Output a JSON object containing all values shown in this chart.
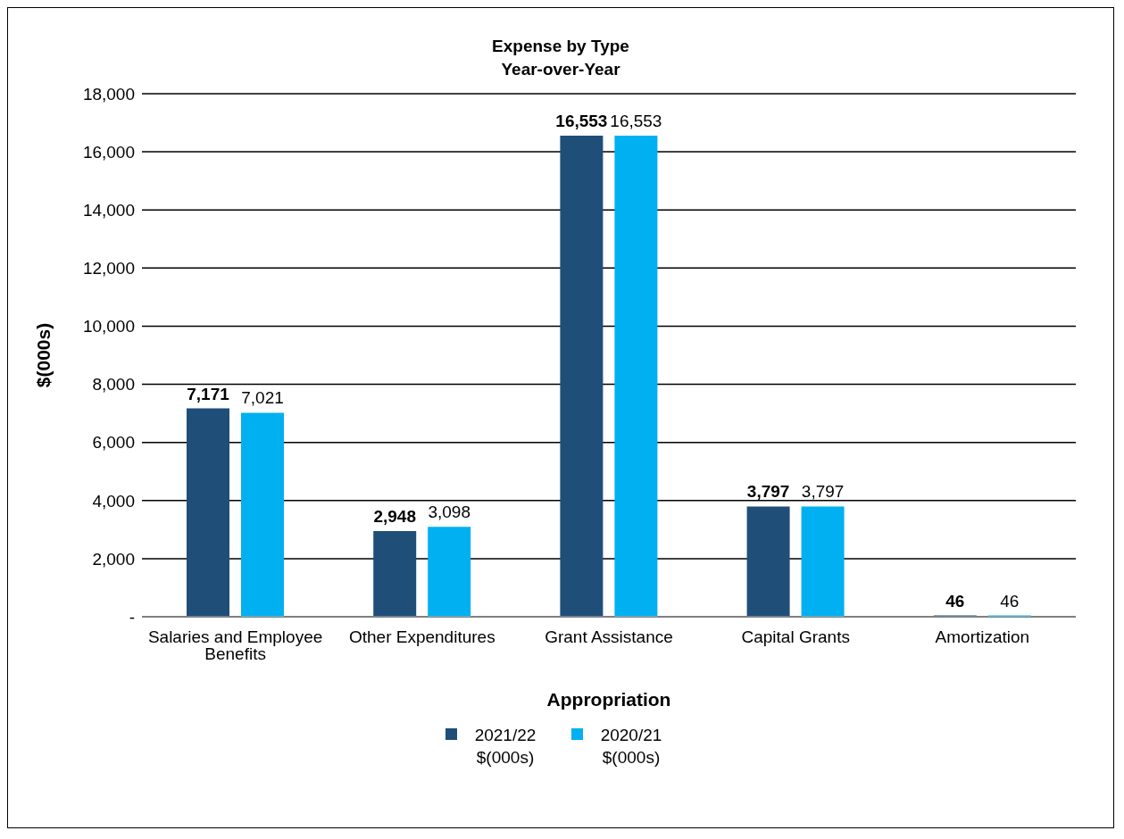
{
  "chart_data": {
    "type": "bar",
    "title": "Expense by Type",
    "subtitle": "Year-over-Year",
    "xlabel": "Appropriation",
    "ylabel": "$(000s)",
    "categories": [
      "Salaries and Employee Benefits",
      "Other Expenditures",
      "Grant Assistance",
      "Capital Grants",
      "Amortization"
    ],
    "series": [
      {
        "name": "2021/22 $(000s)",
        "color": "#1f4e79",
        "values": [
          7171,
          2948,
          16553,
          3797,
          46
        ],
        "value_labels": [
          "7,171",
          "2,948",
          "16,553",
          "3,797",
          "46"
        ]
      },
      {
        "name": "2020/21 $(000s)",
        "color": "#00b0f0",
        "values": [
          7021,
          3098,
          16553,
          3797,
          46
        ],
        "value_labels": [
          "7,021",
          "3,098",
          "16,553",
          "3,797",
          "46"
        ]
      }
    ],
    "ylim": [
      0,
      18000
    ],
    "yticks": [
      {
        "value": 0,
        "label": "-"
      },
      {
        "value": 2000,
        "label": "2,000"
      },
      {
        "value": 4000,
        "label": "4,000"
      },
      {
        "value": 6000,
        "label": "6,000"
      },
      {
        "value": 8000,
        "label": "8,000"
      },
      {
        "value": 10000,
        "label": "10,000"
      },
      {
        "value": 12000,
        "label": "12,000"
      },
      {
        "value": 14000,
        "label": "14,000"
      },
      {
        "value": 16000,
        "label": "16,000"
      },
      {
        "value": 18000,
        "label": "18,000"
      }
    ],
    "grid": "y",
    "legend": "bottom"
  }
}
